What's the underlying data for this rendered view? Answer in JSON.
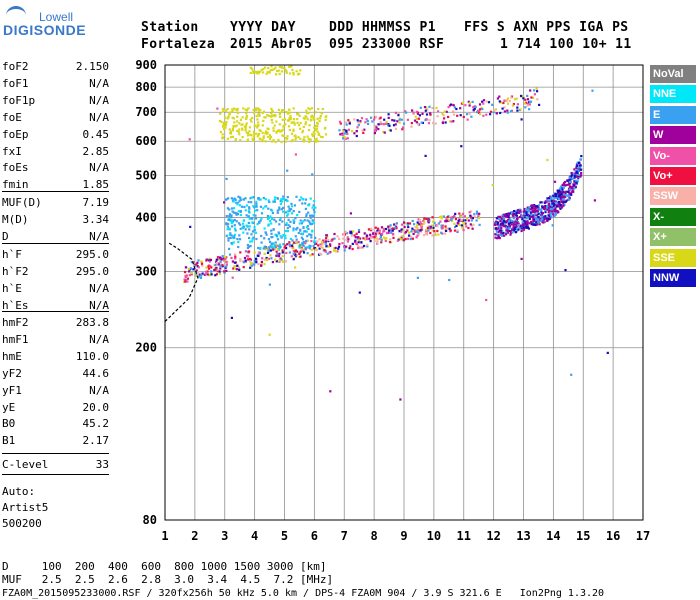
{
  "logo": {
    "top": "Lowell",
    "main": "DIGISONDE"
  },
  "header": {
    "labels": [
      "Station",
      "YYYY DAY",
      "DDD HHMMSS P1",
      "FFS S AXN PPS IGA PS"
    ],
    "values": [
      "Fortaleza",
      "2015 Abr05",
      "095 233000 RSF",
      "1 714 100 10+ 11"
    ]
  },
  "params": {
    "group1": [
      {
        "label": "foF2",
        "value": "2.150"
      },
      {
        "label": "foF1",
        "value": "N/A"
      },
      {
        "label": "foF1p",
        "value": "N/A"
      },
      {
        "label": "foE",
        "value": "N/A"
      },
      {
        "label": "foEp",
        "value": "0.45"
      },
      {
        "label": "fxI",
        "value": "2.85"
      },
      {
        "label": "foEs",
        "value": "N/A"
      },
      {
        "label": "fmin",
        "value": "1.85"
      }
    ],
    "group2": [
      {
        "label": "MUF(D)",
        "value": "7.19"
      },
      {
        "label": "M(D)",
        "value": "3.34"
      },
      {
        "label": "D",
        "value": "N/A"
      }
    ],
    "group3": [
      {
        "label": "h`F",
        "value": "295.0"
      },
      {
        "label": "h`F2",
        "value": "295.0"
      },
      {
        "label": "h`E",
        "value": "N/A"
      },
      {
        "label": "h`Es",
        "value": "N/A"
      }
    ],
    "group4": [
      {
        "label": "hmF2",
        "value": "283.8"
      },
      {
        "label": "hmF1",
        "value": "N/A"
      },
      {
        "label": "hmE",
        "value": "110.0"
      },
      {
        "label": "yF2",
        "value": "44.6"
      },
      {
        "label": "yF1",
        "value": "N/A"
      },
      {
        "label": "yE",
        "value": "20.0"
      },
      {
        "label": "B0",
        "value": "45.2"
      },
      {
        "label": "B1",
        "value": "2.17"
      }
    ],
    "group5": [
      {
        "label": "C-level",
        "value": "33"
      }
    ]
  },
  "auto": {
    "label": "Auto:",
    "name": "Artist5",
    "version": "500200"
  },
  "legend": [
    {
      "label": "NoVal",
      "color": "#808080",
      "text_color": "#ffffff"
    },
    {
      "label": "NNE",
      "color": "#00e8f8",
      "text_color": "#ffffff"
    },
    {
      "label": "E",
      "color": "#3aa0f0",
      "text_color": "#ffffff"
    },
    {
      "label": "W",
      "color": "#a0009c",
      "text_color": "#ffffff"
    },
    {
      "label": "Vo-",
      "color": "#f050a8",
      "text_color": "#ffffff"
    },
    {
      "label": "Vo+",
      "color": "#f01040",
      "text_color": "#ffffff"
    },
    {
      "label": "SSW",
      "color": "#f8b0a8",
      "text_color": "#ffffff"
    },
    {
      "label": "X-",
      "color": "#108010",
      "text_color": "#ffffff"
    },
    {
      "label": "X+",
      "color": "#90c068",
      "text_color": "#ffffff"
    },
    {
      "label": "SSE",
      "color": "#d8d818",
      "text_color": "#ffffff"
    },
    {
      "label": "NNW",
      "color": "#1010c0",
      "text_color": "#ffffff"
    }
  ],
  "footer": {
    "d_row": "D     100  200  400  600  800 1000 1500 3000 [km]",
    "muf_row": "MUF   2.5  2.5  2.6  2.8  3.0  3.4  4.5  7.2 [MHz]",
    "file_row": "FZA0M_2015095233000.RSF / 320fx256h 50 kHz 5.0 km / DPS-4 FZA0M 904 / 3.9 S 321.6 E   Ion2Png 1.3.20"
  },
  "chart_data": {
    "type": "scatter",
    "title": "",
    "xlabel": "",
    "ylabel": "",
    "xlim": [
      1,
      17
    ],
    "ylim": [
      80,
      900
    ],
    "y_scale": "log",
    "x_ticks": [
      1,
      2,
      3,
      4,
      5,
      6,
      7,
      8,
      9,
      10,
      11,
      12,
      13,
      14,
      15,
      16,
      17
    ],
    "y_ticks": [
      80,
      200,
      300,
      400,
      500,
      600,
      700,
      800,
      900
    ],
    "grid": true,
    "legend_position": "right",
    "traces": [
      {
        "name": "F2 trace lower",
        "color_key": "mixed",
        "points": [
          [
            1.6,
            300
          ],
          [
            2.5,
            310
          ],
          [
            3.5,
            320
          ],
          [
            4.5,
            330
          ],
          [
            5.5,
            340
          ],
          [
            6.5,
            350
          ],
          [
            7.5,
            360
          ],
          [
            8.5,
            370
          ],
          [
            9.5,
            380
          ],
          [
            10.5,
            390
          ],
          [
            11.5,
            400
          ]
        ]
      },
      {
        "name": "F2 trace upper",
        "color_key": "W",
        "points": [
          [
            12,
            380
          ],
          [
            12.5,
            390
          ],
          [
            13,
            400
          ],
          [
            13.5,
            410
          ],
          [
            14,
            430
          ],
          [
            14.5,
            470
          ],
          [
            14.9,
            530
          ]
        ]
      },
      {
        "name": "F2 second hop",
        "color_key": "mixed",
        "points": [
          [
            6.8,
            640
          ],
          [
            7.5,
            650
          ],
          [
            8.5,
            665
          ],
          [
            9.5,
            690
          ],
          [
            10.5,
            700
          ],
          [
            11.5,
            720
          ],
          [
            12.5,
            740
          ],
          [
            13.5,
            760
          ]
        ]
      }
    ],
    "profile_curve": [
      [
        1.0,
        230
      ],
      [
        1.8,
        260
      ],
      [
        2.1,
        290
      ],
      [
        1.9,
        320
      ],
      [
        1.4,
        340
      ],
      [
        1.1,
        350
      ]
    ]
  }
}
